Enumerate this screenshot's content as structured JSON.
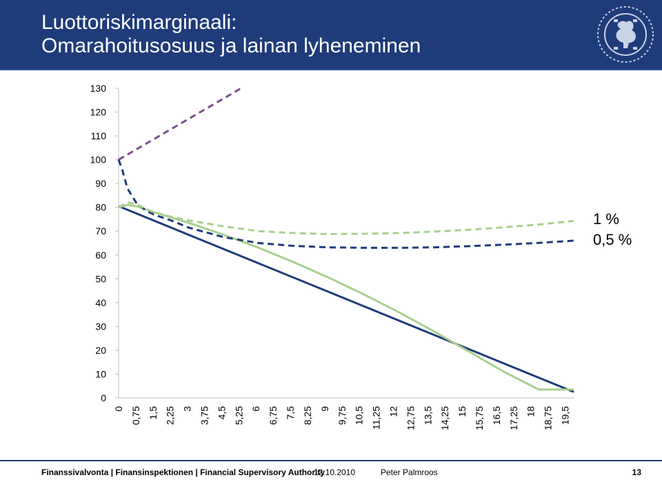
{
  "header": {
    "title_line1": "Luottoriskimarginaali:",
    "title_line2": "Omarahoitusosuus ja lainan lyheneminen",
    "background": "#1f3c7a",
    "logo_icon": "lion-crest-icon"
  },
  "chart_data": {
    "type": "line",
    "title": "",
    "xlabel": "",
    "ylabel": "",
    "ylim": [
      0,
      130
    ],
    "yticks": [
      0,
      10,
      20,
      30,
      40,
      50,
      60,
      70,
      80,
      90,
      100,
      110,
      120,
      130
    ],
    "x_tick_labels": [
      "0",
      "0,75",
      "1,5",
      "2,25",
      "3",
      "3,75",
      "4,5",
      "5,25",
      "6",
      "6,75",
      "7,5",
      "8,25",
      "9",
      "9,75",
      "10,5",
      "11,25",
      "12",
      "12,75",
      "13,5",
      "14,25",
      "15",
      "15,75",
      "16,5",
      "17,25",
      "18",
      "18,75",
      "19,5"
    ],
    "xlim": [
      0,
      19.5
    ],
    "grid": false,
    "side_labels": [
      "1 %",
      "0,5 %"
    ],
    "series": [
      {
        "color": "#1f3c7a",
        "dash": "solid",
        "x": [
          0,
          19.5
        ],
        "y": [
          80.5,
          2.5
        ]
      },
      {
        "color": "#a9d08e",
        "dash": "solid",
        "x": [
          0,
          0.375,
          0.75,
          1.5,
          3,
          4.5,
          6,
          7.5,
          9,
          10.5,
          12,
          13.5,
          15,
          16.5,
          18,
          19.5
        ],
        "y": [
          80,
          81,
          80.5,
          78,
          73.5,
          68.5,
          63,
          57,
          50.5,
          43.5,
          36,
          28,
          19.5,
          11,
          3.5,
          3.5
        ]
      },
      {
        "color": "#7b4f8c",
        "dash": "dashed",
        "x": [
          0,
          5.25
        ],
        "y": [
          100,
          130
        ]
      },
      {
        "color": "#1f3c7a",
        "dash": "dashed",
        "x": [
          0,
          0.15,
          0.375,
          0.75,
          1.125,
          1.5,
          2.25,
          3,
          4.5,
          6,
          7.5,
          9,
          10.5,
          12,
          13.5,
          15,
          16.5,
          18,
          19.5
        ],
        "y": [
          100,
          96,
          88,
          82,
          79,
          77,
          74.5,
          71.5,
          67.5,
          65,
          63.8,
          63.2,
          63,
          63,
          63.2,
          63.7,
          64.3,
          65.1,
          66
        ]
      },
      {
        "color": "#a9d08e",
        "dash": "dashed",
        "x": [
          0,
          0.375,
          0.75,
          1.125,
          1.5,
          2.25,
          3,
          4.5,
          6,
          7.5,
          9,
          10.5,
          12,
          13.5,
          15,
          16.5,
          18,
          19.5
        ],
        "y": [
          80,
          82,
          81.5,
          79.5,
          78,
          76,
          74.5,
          72,
          70,
          69.2,
          68.8,
          68.9,
          69.2,
          69.8,
          70.6,
          71.6,
          72.8,
          74.3
        ]
      }
    ]
  },
  "footer": {
    "org": "Finanssivalvonta | Finansinspektionen | Financial Supervisory Authority",
    "date": "12.10.2010",
    "author": "Peter Palmroos",
    "page": "13"
  }
}
